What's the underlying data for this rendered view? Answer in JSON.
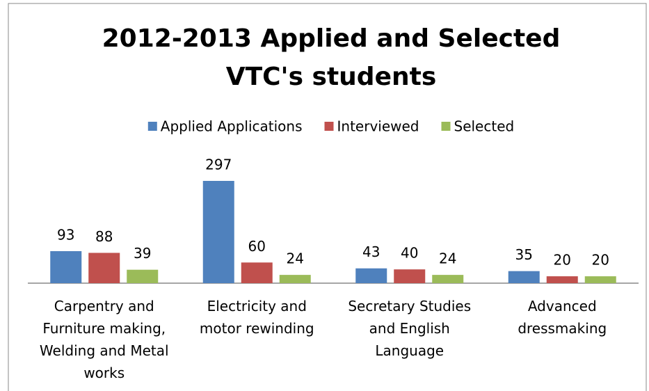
{
  "chart_data": {
    "type": "bar",
    "title": "2012-2013 Applied and Selected",
    "subtitle": "VTC's students",
    "categories": [
      "Carpentry and Furniture making, Welding and Metal works",
      "Electricity and motor rewinding",
      "Secretary Studies and English Language",
      "Advanced dressmaking"
    ],
    "series": [
      {
        "name": "Applied Applications",
        "color": "#4f81bd",
        "values": [
          93,
          297,
          43,
          35
        ]
      },
      {
        "name": "Interviewed",
        "color": "#c0504d",
        "values": [
          88,
          60,
          40,
          20
        ]
      },
      {
        "name": "Selected",
        "color": "#9bbb59",
        "values": [
          39,
          24,
          24,
          20
        ]
      }
    ],
    "legend": "top"
  }
}
